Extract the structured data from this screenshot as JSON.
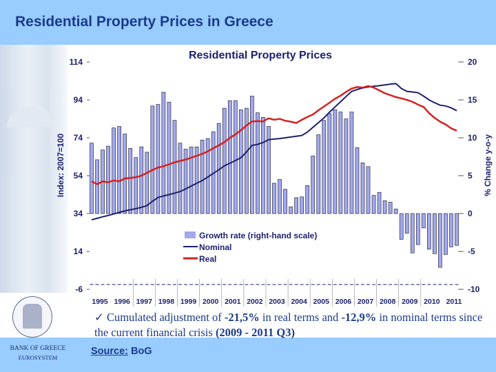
{
  "slide": {
    "title": "Residential Property Prices in Greece",
    "bullet_check": "✓",
    "bullet_parts": [
      "Cumulated adjustment of ",
      "-21,5%",
      " in real terms and ",
      "-12,9%",
      " in nominal terms since the current financial crisis ",
      "(2009 - 2011 Q3)"
    ],
    "source_label": "Source:",
    "source_value": " BoG",
    "bank_name": "BANK OF GREECE",
    "bank_sub": "EUROSYSTEM",
    "colors": {
      "header": "#99ccff",
      "title": "#1a3a8c"
    }
  },
  "chart_data": {
    "type": "bar+line",
    "title": "Residential Property Prices",
    "ylabel": "Index: 2007=100",
    "y2label": "% Change y-o-y",
    "ylim": [
      -6,
      114
    ],
    "y2lim": [
      -10,
      20
    ],
    "yticks": [
      "114",
      "94",
      "74",
      "54",
      "34",
      "14",
      "-6"
    ],
    "y2ticks": [
      "20",
      "15",
      "10",
      "5",
      "0",
      "-5",
      "-10"
    ],
    "x_period": "1995 Q1 - 2011 Q3 (quarterly)",
    "xtick_labels": [
      "1995",
      "1996",
      "1997",
      "1998",
      "1999",
      "2000",
      "2001",
      "2002",
      "2003",
      "2004",
      "2005",
      "2006",
      "2007",
      "2008",
      "2009",
      "2010",
      "2011"
    ],
    "grid": false,
    "legend_position": "center-left",
    "series": [
      {
        "name": "Growth rate (right-hand scale)",
        "type": "bar",
        "axis": "right",
        "color": "#a3a9ee",
        "values": [
          9.3,
          7.1,
          8.4,
          8.9,
          11.3,
          11.5,
          10.5,
          8.6,
          7.4,
          8.8,
          8.1,
          14.2,
          14.4,
          16.0,
          14.7,
          12.3,
          9.3,
          8.5,
          8.8,
          8.8,
          9.7,
          9.9,
          10.8,
          11.9,
          13.9,
          14.9,
          14.9,
          13.7,
          13.9,
          15.5,
          13.3,
          12.7,
          11.5,
          4.0,
          4.5,
          3.2,
          0.9,
          2.1,
          2.2,
          3.7,
          7.6,
          10.4,
          12.3,
          13.2,
          13.7,
          13.4,
          12.5,
          13.4,
          8.7,
          6.7,
          6.2,
          2.4,
          2.8,
          1.7,
          1.5,
          0.6,
          -3.4,
          -2.6,
          -5.2,
          -4.1,
          -1.9,
          -4.7,
          -5.3,
          -7.1,
          -5.4,
          -4.4,
          -4.2
        ]
      },
      {
        "name": "Nominal",
        "type": "line",
        "axis": "left",
        "color": "#1a1f6e",
        "values": [
          30.7,
          31.5,
          32.3,
          33.0,
          33.8,
          34.6,
          35.4,
          36.0,
          36.6,
          37.3,
          38.2,
          40.5,
          42.5,
          43.3,
          44.0,
          44.8,
          45.6,
          47.0,
          48.5,
          50.0,
          51.4,
          53.3,
          55.2,
          57.1,
          59.2,
          60.6,
          62.0,
          63.5,
          66.5,
          70.0,
          70.5,
          71.5,
          73.0,
          73.3,
          73.6,
          74.0,
          74.4,
          74.8,
          75.2,
          77.0,
          79.5,
          82.0,
          84.5,
          87.5,
          90.3,
          93.0,
          95.8,
          98.5,
          99.5,
          100.3,
          100.8,
          101.2,
          101.5,
          101.9,
          102.3,
          102.6,
          100.0,
          98.5,
          98.2,
          97.8,
          96.0,
          94.0,
          92.5,
          91.2,
          90.8,
          89.8,
          88.3
        ]
      },
      {
        "name": "Real",
        "type": "line",
        "axis": "left",
        "color": "#d42020",
        "values": [
          51,
          49.5,
          51,
          50.5,
          51.5,
          51,
          52.5,
          52.8,
          53.2,
          54,
          55.5,
          57,
          58.3,
          59,
          60,
          61,
          61.8,
          62.5,
          63.5,
          64.5,
          65.5,
          66.8,
          68.5,
          70,
          71.7,
          74,
          75.8,
          78,
          80.5,
          82.6,
          82.8,
          82.6,
          84.3,
          83.5,
          84,
          83,
          82.5,
          81.8,
          83.5,
          85,
          86.3,
          88.5,
          90.5,
          92.5,
          94.6,
          96.2,
          98.2,
          100,
          100.8,
          100.5,
          101.3,
          100.5,
          99,
          97.5,
          96.5,
          95.5,
          94.8,
          94,
          93,
          91.5,
          90.3,
          87,
          84.5,
          82.5,
          81,
          79,
          77.7
        ]
      }
    ]
  }
}
